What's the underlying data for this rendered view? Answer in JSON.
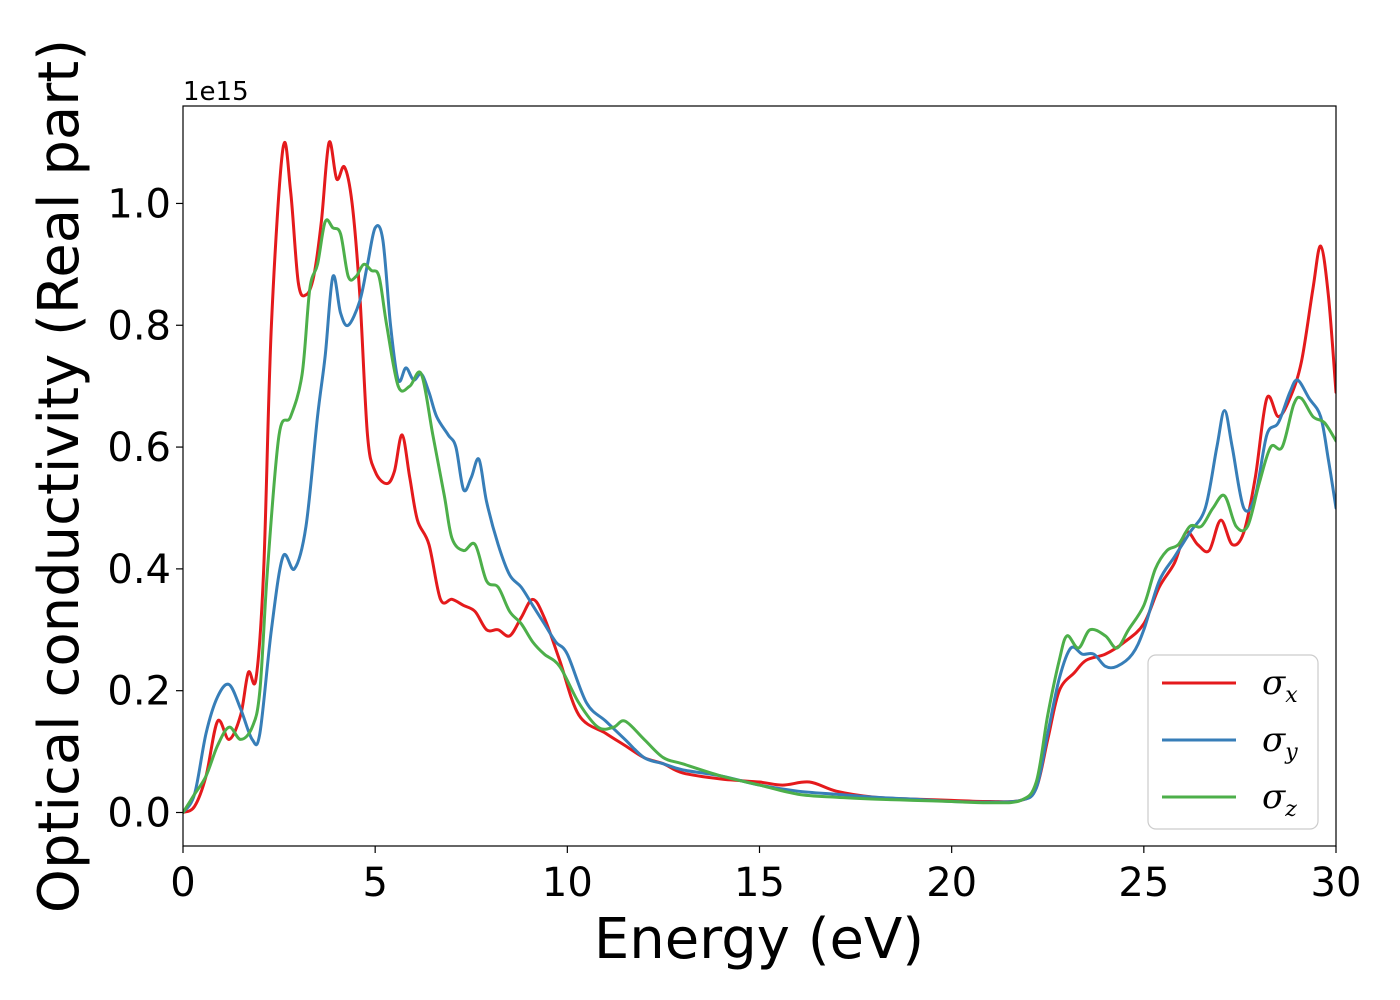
{
  "chart_data": {
    "type": "line",
    "xlabel": "Energy (eV)",
    "ylabel": "Optical conductivity (Real part)",
    "y_offset_label": "1e15",
    "xlim": [
      0,
      30
    ],
    "ylim": [
      -0.055,
      1.16
    ],
    "x_ticks": [
      0,
      5,
      10,
      15,
      20,
      25,
      30
    ],
    "x_tick_labels": [
      "0",
      "5",
      "10",
      "15",
      "20",
      "25",
      "30"
    ],
    "y_ticks": [
      0.0,
      0.2,
      0.4,
      0.6,
      0.8,
      1.0
    ],
    "y_tick_labels": [
      "0.0",
      "0.2",
      "0.4",
      "0.6",
      "0.8",
      "1.0"
    ],
    "grid": false,
    "legend_position": "lower-right",
    "series": [
      {
        "name": "σ_x",
        "symbol": "σ",
        "subscript": "x",
        "color": "#e41a1c",
        "points": [
          [
            0,
            0.0
          ],
          [
            0.3,
            0.01
          ],
          [
            0.6,
            0.06
          ],
          [
            0.9,
            0.15
          ],
          [
            1.2,
            0.12
          ],
          [
            1.5,
            0.16
          ],
          [
            1.7,
            0.23
          ],
          [
            1.9,
            0.22
          ],
          [
            2.1,
            0.4
          ],
          [
            2.3,
            0.8
          ],
          [
            2.6,
            1.09
          ],
          [
            2.8,
            1.02
          ],
          [
            3.0,
            0.87
          ],
          [
            3.2,
            0.85
          ],
          [
            3.4,
            0.88
          ],
          [
            3.6,
            0.97
          ],
          [
            3.8,
            1.1
          ],
          [
            4.0,
            1.04
          ],
          [
            4.2,
            1.06
          ],
          [
            4.4,
            1.0
          ],
          [
            4.6,
            0.85
          ],
          [
            4.8,
            0.62
          ],
          [
            5.0,
            0.56
          ],
          [
            5.3,
            0.54
          ],
          [
            5.5,
            0.56
          ],
          [
            5.7,
            0.62
          ],
          [
            5.9,
            0.55
          ],
          [
            6.1,
            0.48
          ],
          [
            6.4,
            0.44
          ],
          [
            6.7,
            0.35
          ],
          [
            7.0,
            0.35
          ],
          [
            7.3,
            0.34
          ],
          [
            7.6,
            0.33
          ],
          [
            7.9,
            0.3
          ],
          [
            8.2,
            0.3
          ],
          [
            8.5,
            0.29
          ],
          [
            8.8,
            0.32
          ],
          [
            9.1,
            0.35
          ],
          [
            9.4,
            0.32
          ],
          [
            9.8,
            0.25
          ],
          [
            10.3,
            0.16
          ],
          [
            11.0,
            0.13
          ],
          [
            11.5,
            0.11
          ],
          [
            12.0,
            0.09
          ],
          [
            12.5,
            0.08
          ],
          [
            13.0,
            0.065
          ],
          [
            14.0,
            0.055
          ],
          [
            15.0,
            0.05
          ],
          [
            15.6,
            0.045
          ],
          [
            16.3,
            0.05
          ],
          [
            17.0,
            0.035
          ],
          [
            18.0,
            0.025
          ],
          [
            19.0,
            0.022
          ],
          [
            20.0,
            0.02
          ],
          [
            21.0,
            0.018
          ],
          [
            21.8,
            0.02
          ],
          [
            22.2,
            0.04
          ],
          [
            22.5,
            0.12
          ],
          [
            22.8,
            0.2
          ],
          [
            23.2,
            0.23
          ],
          [
            23.5,
            0.25
          ],
          [
            24.0,
            0.26
          ],
          [
            24.5,
            0.28
          ],
          [
            25.0,
            0.31
          ],
          [
            25.4,
            0.37
          ],
          [
            25.8,
            0.41
          ],
          [
            26.1,
            0.46
          ],
          [
            26.4,
            0.44
          ],
          [
            26.7,
            0.43
          ],
          [
            27.0,
            0.48
          ],
          [
            27.3,
            0.44
          ],
          [
            27.6,
            0.46
          ],
          [
            27.9,
            0.55
          ],
          [
            28.2,
            0.68
          ],
          [
            28.5,
            0.65
          ],
          [
            28.8,
            0.68
          ],
          [
            29.1,
            0.74
          ],
          [
            29.4,
            0.86
          ],
          [
            29.6,
            0.93
          ],
          [
            29.8,
            0.85
          ],
          [
            30.0,
            0.69
          ]
        ]
      },
      {
        "name": "σ_y",
        "symbol": "σ",
        "subscript": "y",
        "color": "#377eb8",
        "points": [
          [
            0,
            0.0
          ],
          [
            0.3,
            0.03
          ],
          [
            0.6,
            0.13
          ],
          [
            0.9,
            0.19
          ],
          [
            1.2,
            0.21
          ],
          [
            1.5,
            0.17
          ],
          [
            1.8,
            0.12
          ],
          [
            2.0,
            0.13
          ],
          [
            2.3,
            0.3
          ],
          [
            2.6,
            0.42
          ],
          [
            2.9,
            0.4
          ],
          [
            3.2,
            0.47
          ],
          [
            3.5,
            0.65
          ],
          [
            3.7,
            0.75
          ],
          [
            3.9,
            0.88
          ],
          [
            4.1,
            0.82
          ],
          [
            4.3,
            0.8
          ],
          [
            4.6,
            0.84
          ],
          [
            4.8,
            0.9
          ],
          [
            5.0,
            0.96
          ],
          [
            5.2,
            0.94
          ],
          [
            5.4,
            0.8
          ],
          [
            5.6,
            0.71
          ],
          [
            5.8,
            0.73
          ],
          [
            6.0,
            0.71
          ],
          [
            6.2,
            0.72
          ],
          [
            6.4,
            0.69
          ],
          [
            6.6,
            0.65
          ],
          [
            6.9,
            0.62
          ],
          [
            7.1,
            0.6
          ],
          [
            7.3,
            0.53
          ],
          [
            7.5,
            0.55
          ],
          [
            7.7,
            0.58
          ],
          [
            7.9,
            0.51
          ],
          [
            8.2,
            0.44
          ],
          [
            8.5,
            0.39
          ],
          [
            8.8,
            0.37
          ],
          [
            9.1,
            0.34
          ],
          [
            9.4,
            0.31
          ],
          [
            9.7,
            0.28
          ],
          [
            10.0,
            0.26
          ],
          [
            10.5,
            0.18
          ],
          [
            11.0,
            0.15
          ],
          [
            11.5,
            0.12
          ],
          [
            12.0,
            0.09
          ],
          [
            12.5,
            0.08
          ],
          [
            13.0,
            0.07
          ],
          [
            14.0,
            0.06
          ],
          [
            15.0,
            0.045
          ],
          [
            16.0,
            0.035
          ],
          [
            17.0,
            0.03
          ],
          [
            18.0,
            0.025
          ],
          [
            19.0,
            0.022
          ],
          [
            20.0,
            0.018
          ],
          [
            21.0,
            0.017
          ],
          [
            21.8,
            0.02
          ],
          [
            22.2,
            0.04
          ],
          [
            22.5,
            0.13
          ],
          [
            22.8,
            0.22
          ],
          [
            23.1,
            0.27
          ],
          [
            23.4,
            0.26
          ],
          [
            23.7,
            0.26
          ],
          [
            24.0,
            0.24
          ],
          [
            24.3,
            0.24
          ],
          [
            24.7,
            0.26
          ],
          [
            25.0,
            0.3
          ],
          [
            25.4,
            0.38
          ],
          [
            25.8,
            0.42
          ],
          [
            26.2,
            0.46
          ],
          [
            26.6,
            0.5
          ],
          [
            26.9,
            0.6
          ],
          [
            27.1,
            0.66
          ],
          [
            27.3,
            0.6
          ],
          [
            27.6,
            0.5
          ],
          [
            27.9,
            0.52
          ],
          [
            28.2,
            0.62
          ],
          [
            28.5,
            0.64
          ],
          [
            28.8,
            0.69
          ],
          [
            29.0,
            0.71
          ],
          [
            29.3,
            0.68
          ],
          [
            29.6,
            0.65
          ],
          [
            29.8,
            0.58
          ],
          [
            30.0,
            0.5
          ]
        ]
      },
      {
        "name": "σ_z",
        "symbol": "σ",
        "subscript": "z",
        "color": "#4daf4a",
        "points": [
          [
            0,
            0.0
          ],
          [
            0.3,
            0.03
          ],
          [
            0.6,
            0.06
          ],
          [
            0.9,
            0.11
          ],
          [
            1.2,
            0.14
          ],
          [
            1.5,
            0.12
          ],
          [
            1.8,
            0.14
          ],
          [
            2.0,
            0.2
          ],
          [
            2.2,
            0.4
          ],
          [
            2.5,
            0.62
          ],
          [
            2.8,
            0.65
          ],
          [
            3.1,
            0.72
          ],
          [
            3.3,
            0.86
          ],
          [
            3.5,
            0.9
          ],
          [
            3.7,
            0.97
          ],
          [
            3.9,
            0.96
          ],
          [
            4.1,
            0.95
          ],
          [
            4.3,
            0.88
          ],
          [
            4.5,
            0.88
          ],
          [
            4.7,
            0.9
          ],
          [
            4.9,
            0.89
          ],
          [
            5.1,
            0.88
          ],
          [
            5.3,
            0.8
          ],
          [
            5.6,
            0.7
          ],
          [
            5.9,
            0.7
          ],
          [
            6.2,
            0.72
          ],
          [
            6.5,
            0.62
          ],
          [
            6.8,
            0.52
          ],
          [
            7.0,
            0.45
          ],
          [
            7.3,
            0.43
          ],
          [
            7.6,
            0.44
          ],
          [
            7.9,
            0.38
          ],
          [
            8.2,
            0.37
          ],
          [
            8.5,
            0.33
          ],
          [
            8.8,
            0.31
          ],
          [
            9.1,
            0.28
          ],
          [
            9.4,
            0.26
          ],
          [
            9.8,
            0.24
          ],
          [
            10.3,
            0.18
          ],
          [
            10.8,
            0.14
          ],
          [
            11.2,
            0.14
          ],
          [
            11.5,
            0.15
          ],
          [
            12.0,
            0.12
          ],
          [
            12.5,
            0.09
          ],
          [
            13.0,
            0.08
          ],
          [
            14.0,
            0.06
          ],
          [
            15.0,
            0.045
          ],
          [
            16.0,
            0.03
          ],
          [
            17.0,
            0.025
          ],
          [
            18.0,
            0.022
          ],
          [
            19.0,
            0.02
          ],
          [
            20.0,
            0.018
          ],
          [
            21.0,
            0.016
          ],
          [
            21.8,
            0.02
          ],
          [
            22.2,
            0.05
          ],
          [
            22.5,
            0.16
          ],
          [
            22.8,
            0.25
          ],
          [
            23.0,
            0.29
          ],
          [
            23.3,
            0.27
          ],
          [
            23.6,
            0.3
          ],
          [
            24.0,
            0.29
          ],
          [
            24.3,
            0.27
          ],
          [
            24.6,
            0.3
          ],
          [
            25.0,
            0.34
          ],
          [
            25.3,
            0.4
          ],
          [
            25.6,
            0.43
          ],
          [
            25.9,
            0.44
          ],
          [
            26.2,
            0.47
          ],
          [
            26.5,
            0.47
          ],
          [
            26.8,
            0.5
          ],
          [
            27.1,
            0.52
          ],
          [
            27.4,
            0.47
          ],
          [
            27.7,
            0.47
          ],
          [
            28.0,
            0.54
          ],
          [
            28.3,
            0.6
          ],
          [
            28.6,
            0.6
          ],
          [
            28.9,
            0.67
          ],
          [
            29.1,
            0.68
          ],
          [
            29.4,
            0.65
          ],
          [
            29.7,
            0.64
          ],
          [
            30.0,
            0.61
          ]
        ]
      }
    ]
  }
}
